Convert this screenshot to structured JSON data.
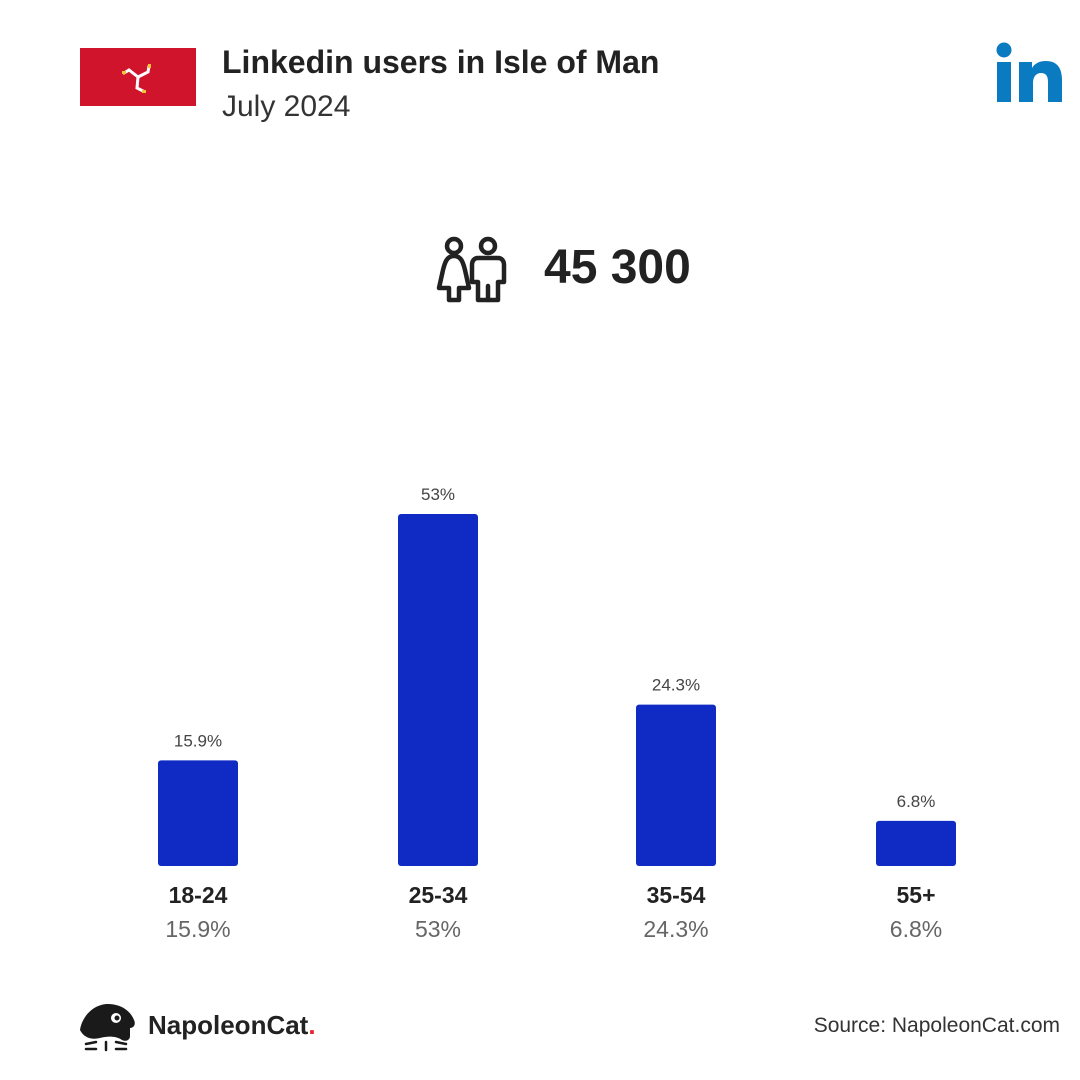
{
  "header": {
    "title": "Linkedin users in Isle of Man",
    "subtitle": "July 2024"
  },
  "icons": {
    "flag": "isle-of-man-flag",
    "brand": "linkedin-logo",
    "users": "people-icon",
    "footer_logo": "napoleoncat-logo"
  },
  "total_users": "45 300",
  "colors": {
    "bar": "#0f2bc4",
    "flag_red": "#cf142b",
    "linkedin_blue": "#0a7bc1",
    "footer_accent": "#e3262d"
  },
  "chart_data": {
    "type": "bar",
    "categories": [
      "18-24",
      "25-34",
      "35-54",
      "55+"
    ],
    "values": [
      15.9,
      53,
      24.3,
      6.8
    ],
    "value_labels": [
      "15.9%",
      "53%",
      "24.3%",
      "6.8%"
    ],
    "ylim": [
      0,
      53
    ]
  },
  "footer": {
    "brand_name": "NapoleonCat",
    "brand_dot": ".",
    "source": "Source: NapoleonCat.com"
  }
}
